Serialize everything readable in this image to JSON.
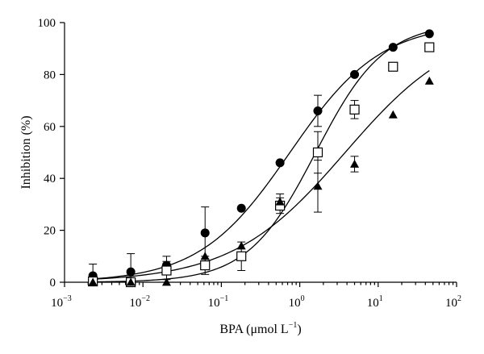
{
  "chart_data": {
    "type": "scatter",
    "title": "",
    "xlabel": "BPA (μmol L⁻¹)",
    "ylabel": "Inhibition (%)",
    "xscale": "log",
    "xlim": [
      0.001,
      100
    ],
    "ylim": [
      0,
      100
    ],
    "x_ticks": [
      {
        "value": 0.001,
        "base": "10",
        "exp": "−3"
      },
      {
        "value": 0.01,
        "base": "10",
        "exp": "−2"
      },
      {
        "value": 0.1,
        "base": "10",
        "exp": "−1"
      },
      {
        "value": 1,
        "base": "10",
        "exp": "0"
      },
      {
        "value": 10,
        "base": "10",
        "exp": "1"
      },
      {
        "value": 100,
        "base": "10",
        "exp": "2"
      }
    ],
    "y_ticks": [
      0,
      20,
      40,
      60,
      80,
      100
    ],
    "grid": false,
    "series": [
      {
        "marker": "filled-circle",
        "x": [
          0.0023,
          0.007,
          0.02,
          0.062,
          0.18,
          0.56,
          1.7,
          5.0,
          15.5,
          45
        ],
        "y": [
          2.5,
          4,
          6.5,
          19,
          28.5,
          46,
          66,
          80,
          90.5,
          95.7
        ],
        "err": [
          4.5,
          7,
          3.5,
          10,
          0,
          0,
          6,
          0,
          0,
          0
        ],
        "fit": {
          "ec50": 0.75,
          "hill": 0.75
        }
      },
      {
        "marker": "open-square",
        "x": [
          0.0023,
          0.007,
          0.02,
          0.062,
          0.18,
          0.56,
          1.7,
          5.0,
          15.5,
          45
        ],
        "y": [
          0.3,
          0,
          4.5,
          6.5,
          10,
          29.5,
          50,
          66.5,
          83,
          90.5
        ],
        "err": [
          2.5,
          0,
          3.5,
          3.5,
          5.5,
          3,
          8,
          3.5,
          0,
          0
        ],
        "fit": {
          "ec50": 1.6,
          "hill": 1.0
        }
      },
      {
        "marker": "filled-triangle",
        "x": [
          0.0023,
          0.007,
          0.02,
          0.062,
          0.18,
          0.56,
          1.7,
          5.0,
          15.5,
          45
        ],
        "y": [
          0,
          0,
          0,
          10,
          14,
          31,
          37,
          45.5,
          64.5,
          77.5
        ],
        "err": [
          0,
          0,
          0,
          0,
          0,
          3,
          10,
          3,
          0,
          0
        ],
        "fit": {
          "ec50": 3.8,
          "hill": 0.6
        }
      }
    ]
  }
}
